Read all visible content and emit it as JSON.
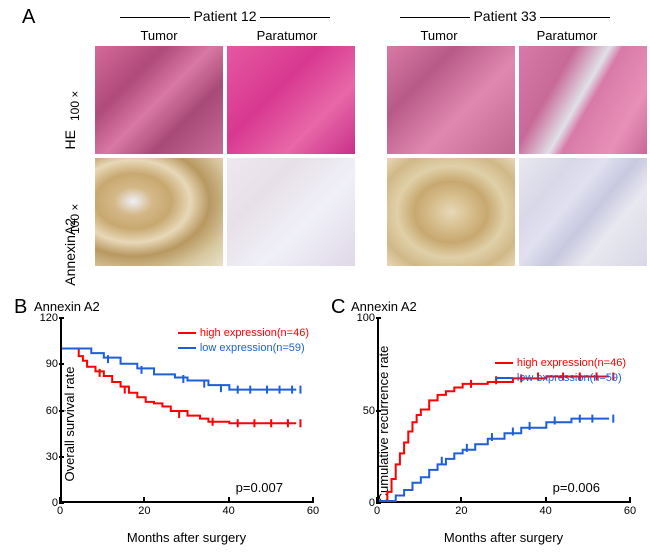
{
  "panelA": {
    "label": "A",
    "patients": [
      "Patient 12",
      "Patient 33"
    ],
    "columns": [
      "Tumor",
      "Paratumor",
      "Tumor",
      "Paratumor"
    ],
    "rows": [
      "HE",
      "AnnexinA2"
    ],
    "magnification": "100 ×"
  },
  "panelB": {
    "label": "B",
    "chart_title": "Annexin A2",
    "type": "kaplan-meier",
    "y_label": "Overall survival rate",
    "x_label": "Months   after   surgery",
    "ylim": [
      0,
      120
    ],
    "xlim": [
      0,
      60
    ],
    "yticks": [
      0,
      30,
      60,
      90,
      120
    ],
    "xticks": [
      0,
      20,
      40,
      60
    ],
    "p_value": "p=0.007",
    "legend_pos": "top-right",
    "pvalue_pos": "bottom-right",
    "line_width": 2,
    "tick_len": 4,
    "colors": {
      "high": "#ff0000",
      "low": "#1e5fd8"
    },
    "series": [
      {
        "name": "high expression(n=46)",
        "color": "#ff0000",
        "points": [
          [
            0,
            100
          ],
          [
            3,
            100
          ],
          [
            4,
            95
          ],
          [
            5,
            92
          ],
          [
            6,
            88
          ],
          [
            8,
            85
          ],
          [
            10,
            82
          ],
          [
            12,
            78
          ],
          [
            14,
            75
          ],
          [
            16,
            71
          ],
          [
            18,
            68
          ],
          [
            20,
            65
          ],
          [
            22,
            64
          ],
          [
            24,
            62
          ],
          [
            26,
            59
          ],
          [
            30,
            56
          ],
          [
            33,
            54
          ],
          [
            35,
            52
          ],
          [
            40,
            51
          ],
          [
            48,
            51
          ],
          [
            52,
            51
          ],
          [
            56,
            51
          ]
        ],
        "censor": [
          [
            9,
            84
          ],
          [
            15,
            73
          ],
          [
            28,
            57
          ],
          [
            36,
            52
          ],
          [
            42,
            51
          ],
          [
            46,
            51
          ],
          [
            50,
            51
          ],
          [
            54,
            51
          ],
          [
            57,
            51
          ]
        ]
      },
      {
        "name": "low expression(n=59)",
        "color": "#1e5fd8",
        "points": [
          [
            0,
            100
          ],
          [
            5,
            100
          ],
          [
            7,
            97
          ],
          [
            10,
            94
          ],
          [
            14,
            90
          ],
          [
            18,
            87
          ],
          [
            22,
            83
          ],
          [
            27,
            81
          ],
          [
            30,
            79
          ],
          [
            35,
            76
          ],
          [
            40,
            73
          ],
          [
            48,
            73
          ],
          [
            56,
            73
          ]
        ],
        "censor": [
          [
            11,
            93
          ],
          [
            19,
            86
          ],
          [
            29,
            80
          ],
          [
            34,
            77
          ],
          [
            38,
            74
          ],
          [
            42,
            73
          ],
          [
            45,
            73
          ],
          [
            49,
            73
          ],
          [
            52,
            73
          ],
          [
            55,
            73
          ],
          [
            57,
            73
          ]
        ]
      }
    ]
  },
  "panelC": {
    "label": "C",
    "chart_title": "Annexin A2",
    "type": "kaplan-meier",
    "y_label": "Cumulative recurrence rate",
    "x_label": "Months   after   surgery",
    "ylim": [
      0,
      100
    ],
    "xlim": [
      0,
      60
    ],
    "yticks": [
      0,
      50,
      100
    ],
    "xticks": [
      0,
      20,
      40,
      60
    ],
    "p_value": "p=0.006",
    "legend_pos": "upper-right",
    "pvalue_pos": "lower-right",
    "line_width": 2,
    "tick_len": 4,
    "colors": {
      "high": "#ff0000",
      "low": "#1e5fd8"
    },
    "series": [
      {
        "name": "high expression(n=46)",
        "color": "#ff0000",
        "points": [
          [
            0,
            0
          ],
          [
            2,
            5
          ],
          [
            3,
            12
          ],
          [
            4,
            20
          ],
          [
            5,
            26
          ],
          [
            6,
            32
          ],
          [
            7,
            38
          ],
          [
            8,
            43
          ],
          [
            9,
            47
          ],
          [
            10,
            50
          ],
          [
            12,
            55
          ],
          [
            14,
            58
          ],
          [
            16,
            60
          ],
          [
            18,
            62
          ],
          [
            20,
            64
          ],
          [
            26,
            65
          ],
          [
            32,
            67
          ],
          [
            40,
            68
          ],
          [
            55,
            68
          ]
        ],
        "censor": [
          [
            22,
            64
          ],
          [
            28,
            66
          ],
          [
            34,
            67
          ],
          [
            38,
            68
          ],
          [
            44,
            68
          ],
          [
            48,
            68
          ],
          [
            52,
            68
          ],
          [
            56,
            68
          ]
        ]
      },
      {
        "name": "low expression(n=59)",
        "color": "#1e5fd8",
        "points": [
          [
            0,
            0
          ],
          [
            4,
            3
          ],
          [
            6,
            6
          ],
          [
            8,
            10
          ],
          [
            10,
            13
          ],
          [
            12,
            17
          ],
          [
            14,
            20
          ],
          [
            16,
            23
          ],
          [
            18,
            26
          ],
          [
            20,
            28
          ],
          [
            23,
            31
          ],
          [
            26,
            34
          ],
          [
            30,
            37
          ],
          [
            34,
            40
          ],
          [
            40,
            43
          ],
          [
            46,
            45
          ],
          [
            55,
            45
          ]
        ],
        "censor": [
          [
            15,
            22
          ],
          [
            21,
            29
          ],
          [
            27,
            35
          ],
          [
            32,
            38
          ],
          [
            36,
            41
          ],
          [
            42,
            44
          ],
          [
            48,
            45
          ],
          [
            51,
            45
          ],
          [
            56,
            45
          ]
        ]
      }
    ]
  },
  "style": {
    "bg": "#ffffff",
    "axis_color": "#000000",
    "font": "Arial",
    "title_size": 13,
    "label_size": 13,
    "tick_size": 11,
    "legend_size": 11,
    "panel_label_size": 20
  }
}
